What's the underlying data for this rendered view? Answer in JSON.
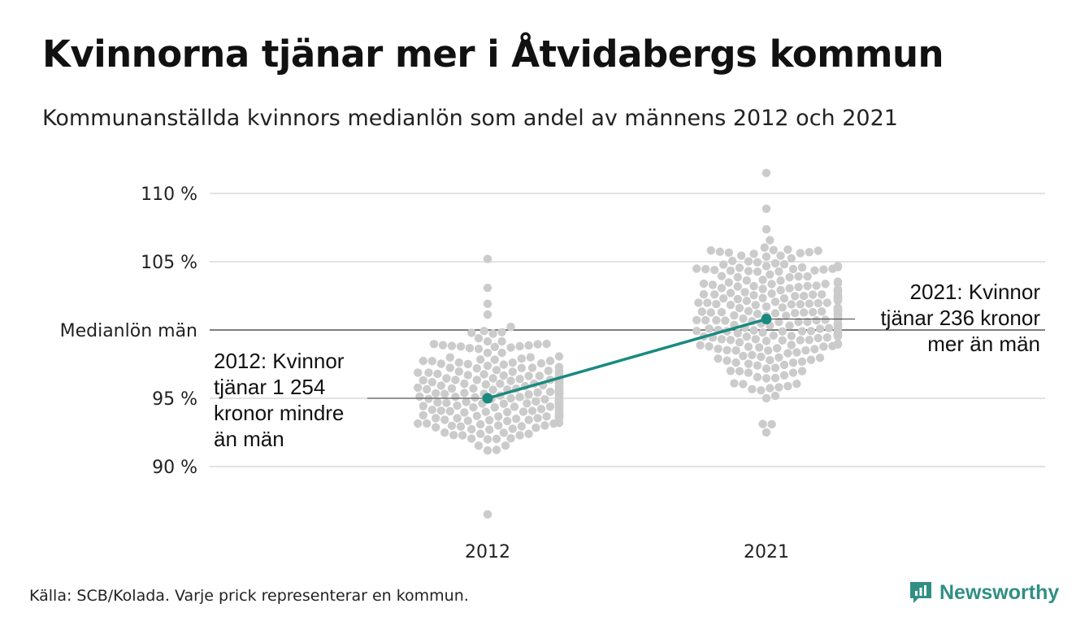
{
  "title": "Kvinnorna tjänar mer i Åtvidabergs kommun",
  "subtitle": "Kommunanställda kvinnors medianlön som andel av männens 2012 och 2021",
  "footer": "Källa: SCB/Kolada. Varje prick representerar en kommun.",
  "brand": {
    "name": "Newsworthy",
    "icon": "newsworthy-logo-icon",
    "color": "#2f8f83"
  },
  "colors": {
    "dots": "#cbcbcb",
    "highlight": "#1a8a80",
    "grid": "#e3e3e3",
    "reference": "#333333"
  },
  "chart_data": {
    "type": "scatter",
    "title": "Kvinnorna tjänar mer i Åtvidabergs kommun",
    "xlabel": "",
    "ylabel": "",
    "categories": [
      "2012",
      "2021"
    ],
    "ylim": [
      86,
      112
    ],
    "yticks": [
      {
        "value": 90,
        "label": "90 %"
      },
      {
        "value": 95,
        "label": "95 %"
      },
      {
        "value": 100,
        "label": "Medianlön män"
      },
      {
        "value": 105,
        "label": "105 %"
      },
      {
        "value": 110,
        "label": "110 %"
      }
    ],
    "reference_line": {
      "value": 100,
      "label": "Medianlön män"
    },
    "grid": true,
    "distribution": [
      {
        "category": "2012",
        "n": 290,
        "center": 95.3,
        "sd": 2.0,
        "min": 86.5,
        "max": 105.2
      },
      {
        "category": "2021",
        "n": 290,
        "center": 101.5,
        "sd": 2.4,
        "min": 92.5,
        "max": 111.5
      }
    ],
    "highlight": {
      "name": "Åtvidaberg",
      "points": [
        {
          "x": "2012",
          "y": 95.0
        },
        {
          "x": "2021",
          "y": 100.8
        }
      ]
    },
    "annotations": [
      {
        "x": "2012",
        "y": 95.0,
        "side": "left",
        "lines": [
          "2012: Kvinnor",
          "tjänar 1 254",
          "kronor mindre",
          "än män"
        ]
      },
      {
        "x": "2021",
        "y": 100.8,
        "side": "right",
        "lines": [
          "2021: Kvinnor",
          "tjänar 236 kronor",
          "mer än män"
        ]
      }
    ]
  }
}
